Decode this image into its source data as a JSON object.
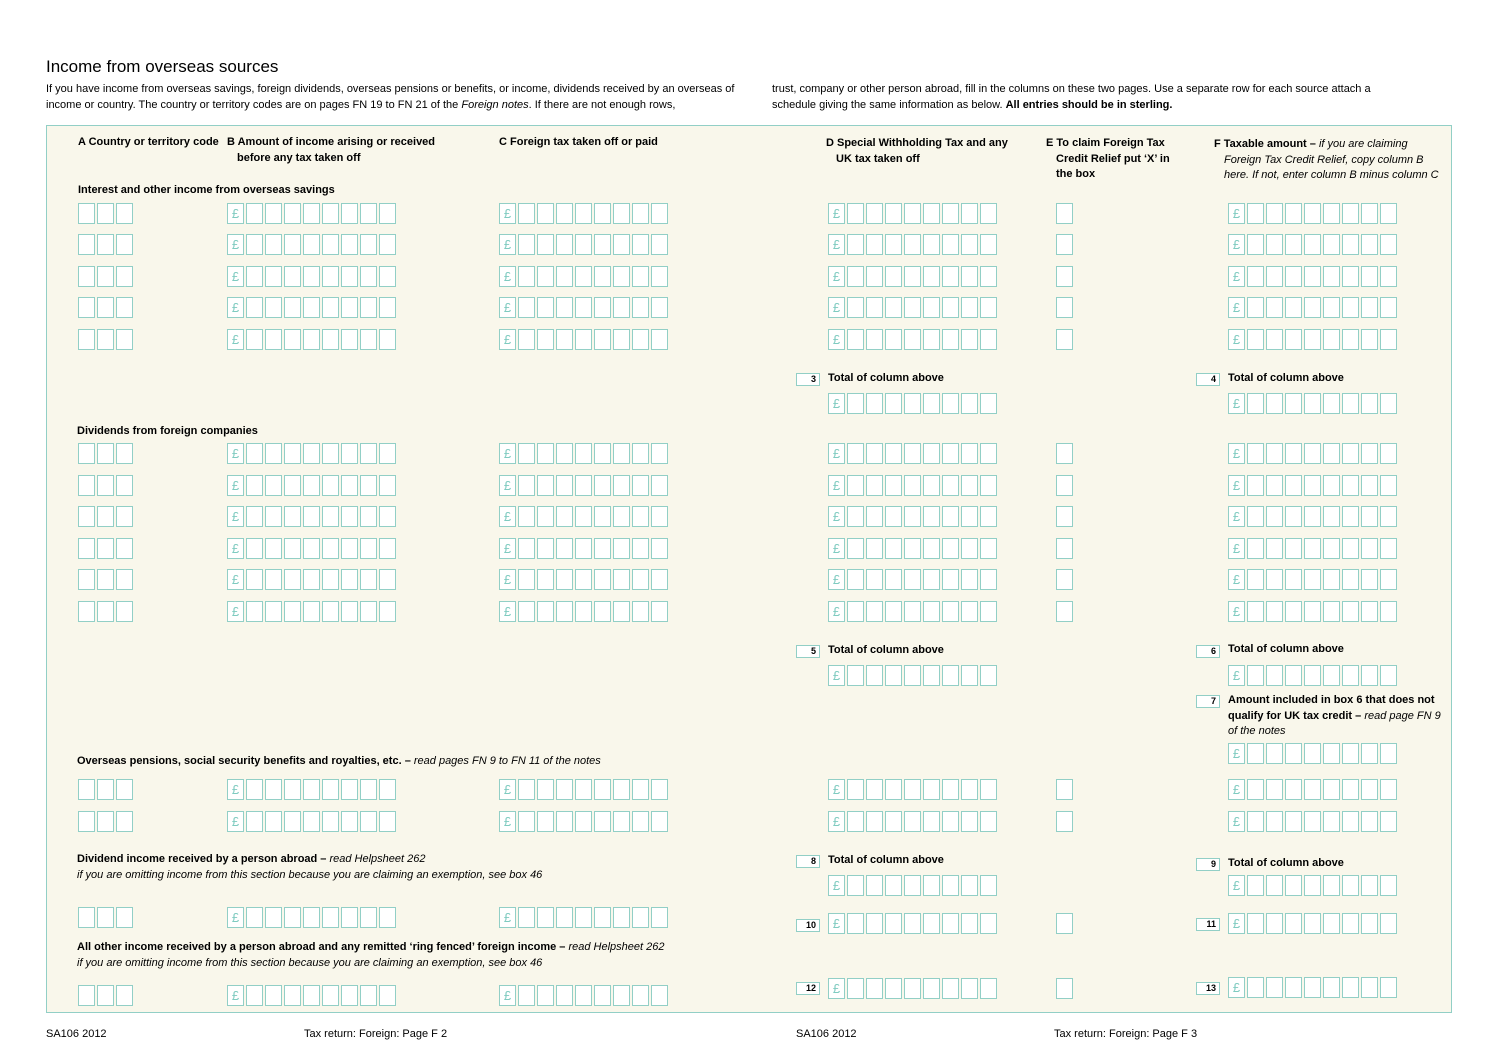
{
  "page": {
    "title": "Income from overseas sources",
    "intro_left": "If you have income from overseas savings, foreign dividends, overseas pensions or benefits, or income, dividends received by an overseas of income or country. The country or territory codes are on pages FN 19 to FN 21 of the ",
    "intro_left_italic": "Foreign notes",
    "intro_left_end": ". If there are not enough rows,",
    "intro_right": "trust, company or other person abroad, fill in the columns on these two pages. Use a separate row for each source attach a schedule giving the same information as below. ",
    "intro_right_bold": "All entries should be in sterling."
  },
  "columns": {
    "a": "A Country or territory code",
    "b_1": "B Amount of income arising or received",
    "b_2": "before any tax taken off",
    "c": "C Foreign tax taken off or paid",
    "d_1": "D Special Withholding Tax and any",
    "d_2": "UK tax taken off",
    "e_1": "E To claim Foreign Tax",
    "e_2": "Credit Relief put ‘X’ in",
    "e_3": "the box",
    "f_1": "F Taxable amount – ",
    "f_1_italic": "if you are claiming",
    "f_2": "Foreign Tax Credit Relief, copy column B",
    "f_3": "here. If not, enter column B minus column C"
  },
  "sections": {
    "savings": "Interest and other income from overseas savings",
    "dividends": "Dividends from foreign companies",
    "pensions": "Overseas pensions, social security benefits and royalties, etc. – ",
    "pensions_italic": "read pages FN 9 to FN 11 of the notes",
    "person_abroad": "Dividend income received by a person abroad – ",
    "person_abroad_italic": "read Helpsheet 262",
    "person_abroad_note": "if you are omitting income from this section because you are claiming an exemption, see box 46",
    "other_abroad": "All other income received by a person abroad and any remitted ‘ring fenced’ foreign income – ",
    "other_abroad_italic": "read Helpsheet 262",
    "other_abroad_note": "if you are omitting income from this section because you are claiming an exemption, see box 46"
  },
  "totals": {
    "label": "Total of column above",
    "box7_1": "Amount included in box 6 that does not",
    "box7_2": "qualify for UK tax credit – ",
    "box7_2_italic": "read page FN 9",
    "box7_3": "of the notes"
  },
  "box_numbers": {
    "b3": "3",
    "b4": "4",
    "b5": "5",
    "b6": "6",
    "b7": "7",
    "b8": "8",
    "b9": "9",
    "b10": "10",
    "b11": "11",
    "b12": "12",
    "b13": "13"
  },
  "currency_symbol": "£",
  "footer": {
    "left_code": "SA106 2012",
    "left_page": "Tax return: Foreign: Page F 2",
    "right_code": "SA106 2012",
    "right_page": "Tax return: Foreign: Page F 3"
  }
}
